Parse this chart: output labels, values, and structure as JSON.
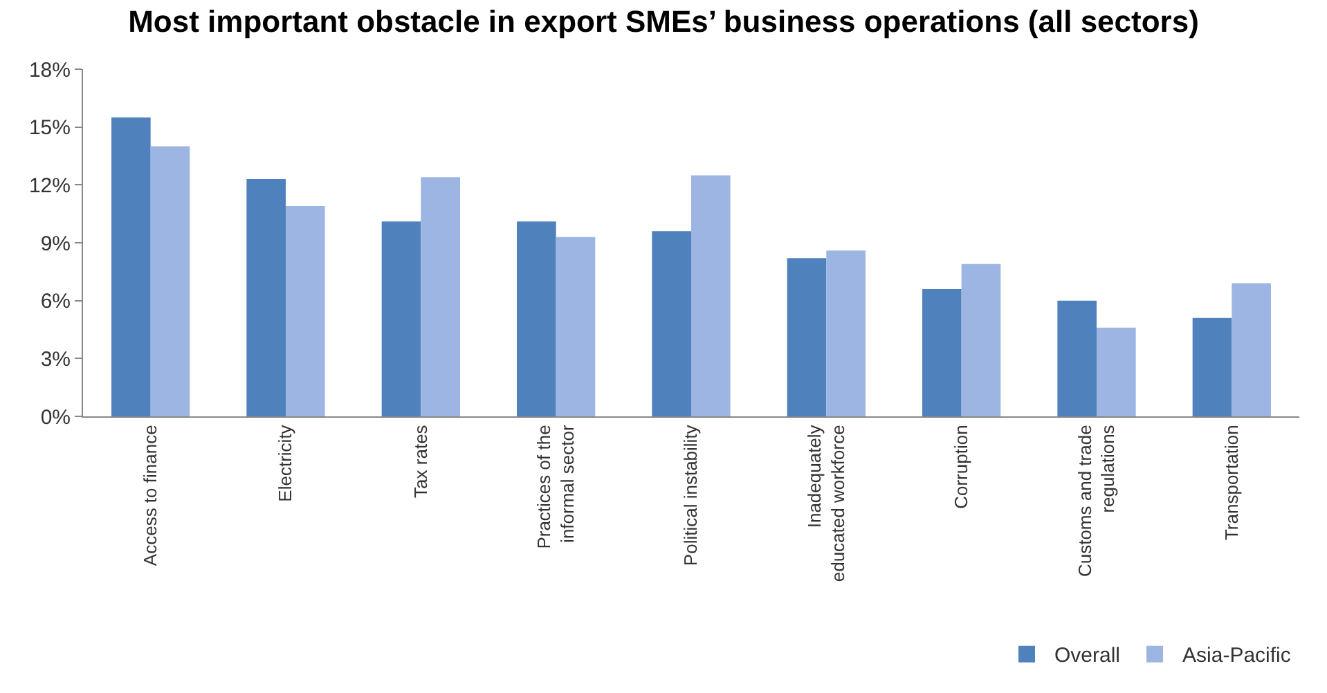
{
  "chart_data": {
    "type": "bar",
    "title": "Most important obstacle in export SMEs’ business operations (all sectors)",
    "categories": [
      "Access to finance",
      "Electricity",
      "Tax rates",
      "Practices of the informal sector",
      "Political instability",
      "Inadequately educated workforce",
      "Corruption",
      "Customs and trade regulations",
      "Transportation"
    ],
    "series": [
      {
        "name": "Overall",
        "color": "#4f81bd",
        "values": [
          15.5,
          12.3,
          10.1,
          10.1,
          9.6,
          8.2,
          6.6,
          6.0,
          5.1
        ]
      },
      {
        "name": "Asia-Pacific",
        "color": "#9db5e3",
        "values": [
          14.0,
          10.9,
          12.4,
          9.3,
          12.5,
          8.6,
          7.9,
          4.6,
          6.9
        ]
      }
    ],
    "ylim": [
      0,
      18
    ],
    "yticks": [
      {
        "value": 0,
        "label": "0%"
      },
      {
        "value": 3,
        "label": "3%"
      },
      {
        "value": 6,
        "label": "6%"
      },
      {
        "value": 9,
        "label": "9%"
      },
      {
        "value": 12,
        "label": "12%"
      },
      {
        "value": 15,
        "label": "15%"
      },
      {
        "value": 18,
        "label": "18%"
      }
    ],
    "grid": false,
    "legend": "bottom right"
  }
}
